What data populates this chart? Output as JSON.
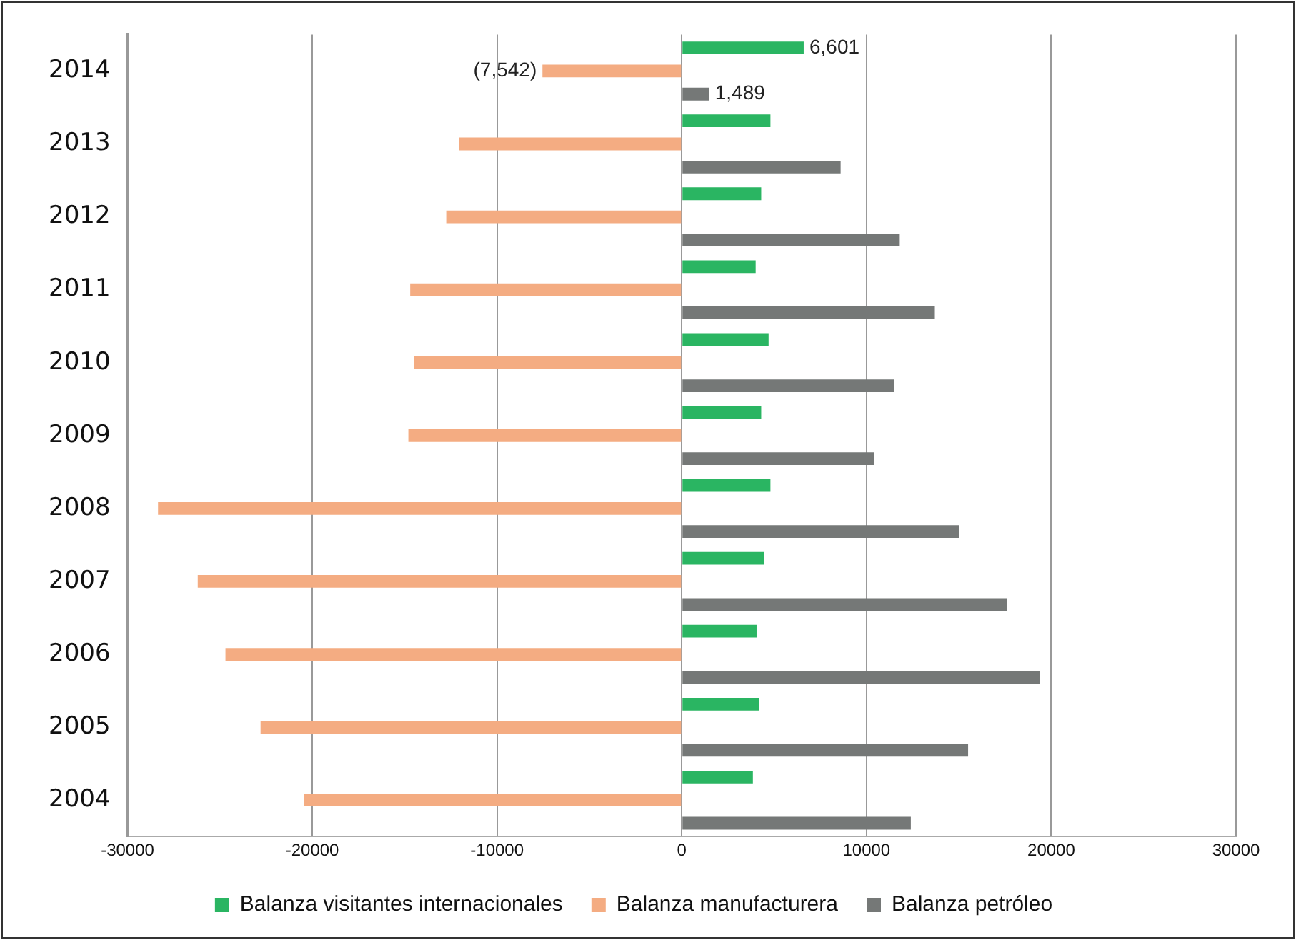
{
  "chart_data": {
    "type": "bar",
    "orientation": "horizontal",
    "categories": [
      "2014",
      "2013",
      "2012",
      "2011",
      "2010",
      "2009",
      "2008",
      "2007",
      "2006",
      "2005",
      "2004"
    ],
    "series": [
      {
        "name": "Balanza visitantes internacionales",
        "color": "#2ab562",
        "values": [
          6601,
          4800,
          4300,
          4000,
          4700,
          4300,
          4800,
          4450,
          4050,
          4200,
          3850
        ],
        "value_labels": [
          "6,601",
          null,
          null,
          null,
          null,
          null,
          null,
          null,
          null,
          null,
          null
        ]
      },
      {
        "name": "Balanza manufacturera",
        "color": "#f4ac82",
        "values": [
          -7542,
          -12050,
          -12750,
          -14700,
          -14500,
          -14800,
          -28350,
          -26200,
          -24700,
          -22800,
          -20450
        ],
        "value_labels": [
          "(7,542)",
          null,
          null,
          null,
          null,
          null,
          null,
          null,
          null,
          null,
          null
        ]
      },
      {
        "name": "Balanza petróleo",
        "color": "#757877",
        "values": [
          1489,
          8600,
          11800,
          13700,
          11500,
          10400,
          15000,
          17600,
          19400,
          15500,
          12400
        ],
        "value_labels": [
          "1,489",
          null,
          null,
          null,
          null,
          null,
          null,
          null,
          null,
          null,
          null
        ]
      }
    ],
    "xlim": [
      -30000,
      30000
    ],
    "xticks": [
      -30000,
      -20000,
      -10000,
      0,
      10000,
      20000,
      30000
    ],
    "grid": "x",
    "legend": "bottom"
  }
}
